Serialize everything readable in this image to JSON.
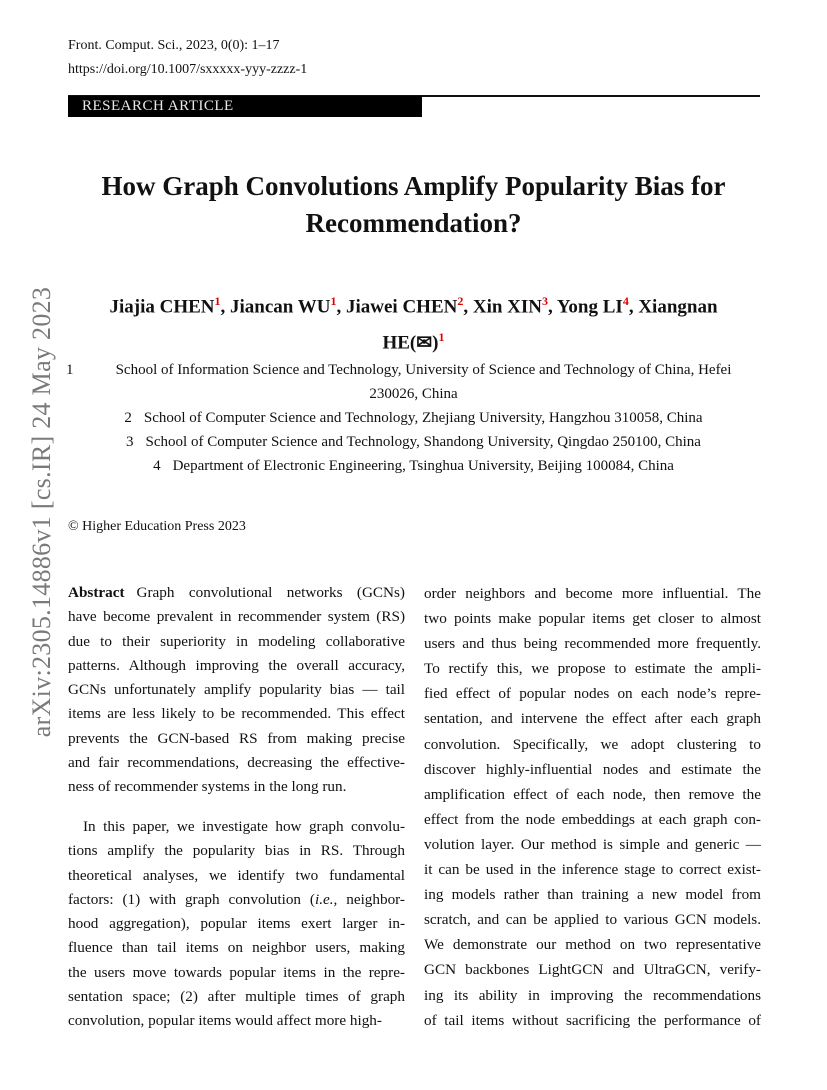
{
  "header": {
    "journal": "Front. Comput. Sci., 2023, 0(0): 1–17",
    "doi": "https://doi.org/10.1007/sxxxxx-yyy-zzzz-1",
    "article_type": "RESEARCH ARTICLE"
  },
  "title_lines": [
    "How Graph Convolutions Amplify Popularity Bias for",
    "Recommendation?"
  ],
  "authors": [
    {
      "name": "Jiajia CHEN",
      "aff": "1",
      "sep": ", "
    },
    {
      "name": "Jiancan WU",
      "aff": "1",
      "sep": ", "
    },
    {
      "name": "Jiawei CHEN",
      "aff": "2",
      "sep": ", "
    },
    {
      "name": "Xin XIN",
      "aff": "3",
      "sep": ", "
    },
    {
      "name": "Yong LI",
      "aff": "4",
      "sep": ", "
    },
    {
      "name": "Xiangnan HE(✉)",
      "aff": "1",
      "sep": ""
    }
  ],
  "affiliations": [
    {
      "num": "1",
      "lines": [
        "School of Information Science and Technology, University of Science and Technology of China, Hefei",
        "230026, China"
      ]
    },
    {
      "num": "2",
      "lines": [
        "School of Computer Science and Technology, Zhejiang University, Hangzhou 310058, China"
      ]
    },
    {
      "num": "3",
      "lines": [
        "School of Computer Science and Technology, Shandong University, Qingdao 250100, China"
      ]
    },
    {
      "num": "4",
      "lines": [
        "Department of Electronic Engineering, Tsinghua University, Beijing 100084, China"
      ]
    }
  ],
  "copyright": "© Higher Education Press 2023",
  "arxiv_id": "arXiv:2305.14886v1  [cs.IR]  24 May 2023",
  "abstract": {
    "label": "Abstract",
    "left_para1": [
      "Graph convolutional networks (GCNs)",
      "have become prevalent in recommender system (RS)",
      "due to their superiority in modeling collaborative",
      "patterns. Although improving the overall accuracy,",
      "GCNs unfortunately amplify popularity bias — tail",
      "items are less likely to be recommended. This effect",
      "prevents the GCN-based RS from making precise",
      "and fair recommendations, decreasing the effective-",
      "ness of recommender systems in the long run."
    ],
    "left_para2": [
      "In this paper, we investigate how graph convolu-",
      "tions amplify the popularity bias in RS. Through",
      "theoretical analyses, we identify two fundamental",
      [
        "factors: (1) with graph convolution (",
        "i.e.,",
        " neighbor-"
      ],
      "hood aggregation), popular items exert larger in-",
      "fluence than tail items on neighbor users, making",
      "the users move towards popular items in the repre-",
      "sentation space; (2) after multiple times of graph",
      "convolution, popular items would affect more high-"
    ],
    "right": [
      "order neighbors and become more influential. The",
      "two points make popular items get closer to almost",
      "users and thus being recommended more frequently.",
      "To rectify this, we propose to estimate the ampli-",
      "fied effect of popular nodes on each node’s repre-",
      "sentation, and intervene the effect after each graph",
      "convolution.  Specifically, we adopt clustering to",
      "discover highly-influential nodes and estimate the",
      "amplification effect of each node, then remove the",
      "effect from the node embeddings at each graph con-",
      "volution layer. Our method is simple and generic —",
      "it can be used in the inference stage to correct exist-",
      "ing models rather than training a new model from",
      "scratch, and can be applied to various GCN models.",
      "We demonstrate our method on two representative",
      "GCN backbones LightGCN and UltraGCN, verify-",
      "ing its ability in improving the recommendations",
      "of tail items without sacrificing the performance of"
    ]
  }
}
